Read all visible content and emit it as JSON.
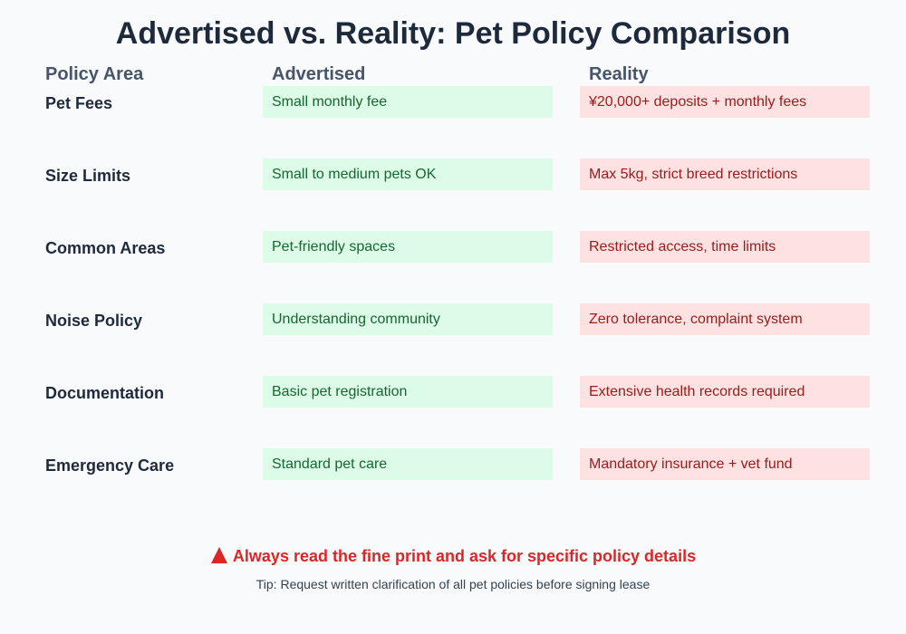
{
  "header": {
    "title": "Advertised vs. Reality: Pet Policy Comparison"
  },
  "table": {
    "headers": [
      "Policy Area",
      "Advertised",
      "Reality"
    ],
    "rows": [
      [
        "Pet Fees",
        "Small monthly fee",
        "¥20,000+ deposits + monthly fees"
      ],
      [
        "Size Limits",
        "Small to medium pets OK",
        "Max 5kg, strict breed restrictions"
      ],
      [
        "Common Areas",
        "Pet-friendly spaces",
        "Restricted access, time limits"
      ],
      [
        "Noise Policy",
        "Understanding community",
        "Zero tolerance, complaint system"
      ],
      [
        "Documentation",
        "Basic pet registration",
        "Extensive health records required"
      ],
      [
        "Emergency Care",
        "Standard pet care",
        "Mandatory insurance + vet fund"
      ]
    ]
  },
  "footer": {
    "warning": "Always read the fine print and ask for specific policy details",
    "tip": "Tip: Request written clarification of all pet policies before signing lease"
  }
}
